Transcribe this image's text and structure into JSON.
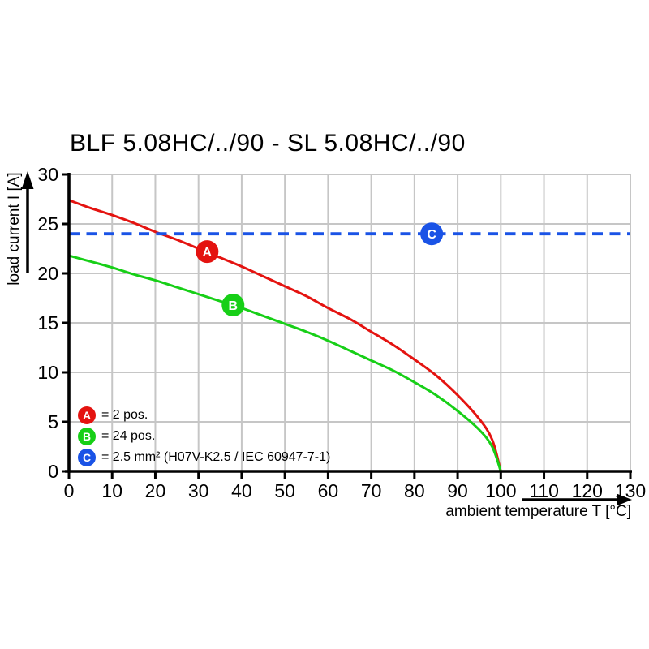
{
  "colors": {
    "red": "#e41310",
    "green": "#17cf17",
    "blue": "#1a53e6",
    "grid": "#c6c6c6",
    "axis": "#000000",
    "marker_letter": "#ffffff"
  },
  "chart_data": {
    "type": "line",
    "title": "BLF 5.08HC/../90 - SL 5.08HC/../90",
    "xlabel": "ambient temperature T [°C]",
    "ylabel": "load current I [A]",
    "xlim": [
      0,
      130
    ],
    "ylim": [
      0,
      30
    ],
    "xticks": [
      0,
      10,
      20,
      30,
      40,
      50,
      60,
      70,
      80,
      90,
      100,
      110,
      120,
      130
    ],
    "yticks": [
      0,
      5,
      10,
      15,
      20,
      25,
      30
    ],
    "grid": true,
    "legend_position": "bottom-left-inside",
    "x": [
      0,
      5,
      10,
      15,
      20,
      25,
      30,
      35,
      40,
      45,
      50,
      55,
      60,
      65,
      70,
      75,
      80,
      85,
      90,
      95,
      98,
      100
    ],
    "series": [
      {
        "name": "A",
        "legend_label": "= 2 pos.",
        "color": "#e41310",
        "style": "solid",
        "values": [
          27.4,
          26.6,
          25.9,
          25.1,
          24.2,
          23.4,
          22.5,
          21.6,
          20.7,
          19.7,
          18.7,
          17.7,
          16.5,
          15.4,
          14.1,
          12.8,
          11.3,
          9.7,
          7.7,
          5.3,
          3.2,
          0
        ],
        "marker_at": {
          "x": 32,
          "y": 22.2
        }
      },
      {
        "name": "B",
        "legend_label": "= 24 pos.",
        "color": "#17cf17",
        "style": "solid",
        "values": [
          21.8,
          21.2,
          20.6,
          19.9,
          19.3,
          18.6,
          17.9,
          17.2,
          16.5,
          15.7,
          14.9,
          14.1,
          13.2,
          12.2,
          11.2,
          10.2,
          9.0,
          7.7,
          6.1,
          4.2,
          2.5,
          0
        ],
        "marker_at": {
          "x": 38,
          "y": 16.8
        }
      },
      {
        "name": "C",
        "legend_label": "= 2.5 mm² (H07V-K2.5 / IEC 60947-7-1)",
        "color": "#1a53e6",
        "style": "dashed",
        "constant_y": 24,
        "marker_at": {
          "x": 84,
          "y": 24
        }
      }
    ]
  }
}
